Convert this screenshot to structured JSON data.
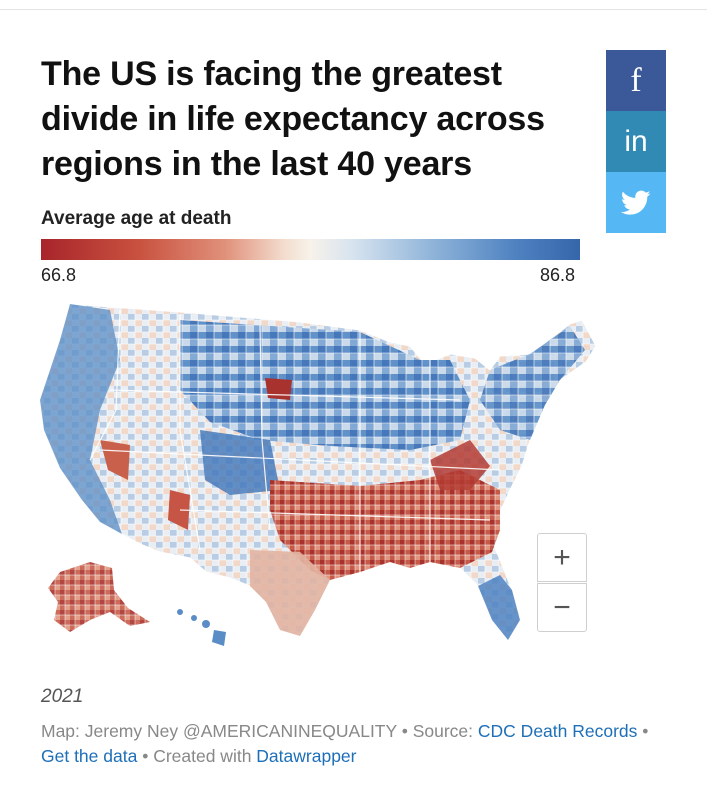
{
  "title": "The US is facing the greatest divide in life expectancy across regions in the last 40 years",
  "share": {
    "facebook_label": "f",
    "linkedin_label": "in",
    "twitter_icon": "twitter-bird-icon"
  },
  "legend": {
    "title": "Average age at death",
    "min": "66.8",
    "max": "86.8",
    "low_color": "#a8252b",
    "mid_color": "#f7f2ea",
    "high_color": "#3566ab"
  },
  "zoom": {
    "in_label": "+",
    "out_label": "−"
  },
  "year": "2021",
  "footer": {
    "map_credit": "Map: Jeremy Ney @AMERICANINEQUALITY",
    "sep1": " • ",
    "source_prefix": "Source: ",
    "source_link": "CDC Death Records",
    "sep2": " • ",
    "data_link": "Get the data",
    "sep3": " • ",
    "created_prefix": "Created with ",
    "created_link": "Datawrapper"
  }
}
